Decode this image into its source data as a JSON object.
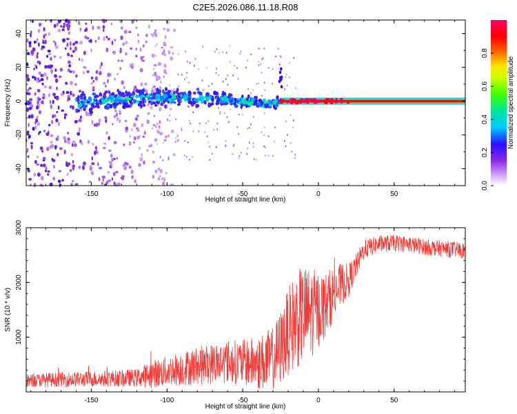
{
  "title": "C2E5.2026.086.11.18.R08",
  "chart_data": [
    {
      "type": "heatmap",
      "xlabel": "Height of straight line (km)",
      "ylabel": "Frequency (Hz)",
      "xlim": [
        -193,
        97
      ],
      "ylim": [
        -50,
        48
      ],
      "xticks": [
        -150,
        -100,
        -50,
        0,
        50
      ],
      "yticks": [
        -40,
        -20,
        0,
        20,
        40
      ],
      "colorbar": {
        "label": "Normalized spectral amplitude",
        "range": [
          0,
          1
        ],
        "ticks": [
          "0.0",
          "0.2",
          "0.4",
          "0.6",
          "0.8"
        ],
        "tick_values": [
          0,
          0.2,
          0.4,
          0.6,
          0.8
        ]
      },
      "features": [
        {
          "name": "noise",
          "x_range": [
            -193,
            -110
          ],
          "y_range": [
            -50,
            48
          ],
          "amplitude": [
            0.05,
            0.25
          ]
        },
        {
          "name": "signal-trace",
          "x_range": [
            -160,
            -25
          ],
          "center_freq": [
            -2,
            3
          ],
          "amplitude": [
            0.2,
            0.45
          ]
        },
        {
          "name": "strong-trace",
          "x_range": [
            -25,
            97
          ],
          "center_freq": 0,
          "amplitude": [
            0.85,
            1.0
          ]
        },
        {
          "name": "spike",
          "x": -26,
          "y_range": [
            8,
            20
          ],
          "amplitude": 0.25
        }
      ]
    },
    {
      "type": "line",
      "xlabel": "Height of straight line (km)",
      "ylabel": "SNR (10 * v/v)",
      "xlim": [
        -193,
        97
      ],
      "ylim": [
        0,
        3000
      ],
      "xticks": [
        -150,
        -100,
        -50,
        0,
        50
      ],
      "yticks": [
        1000,
        2000,
        3000
      ],
      "series": [
        {
          "name": "SNR",
          "color": "#ef3a36",
          "x": [
            -193,
            -180,
            -160,
            -140,
            -120,
            -110,
            -100,
            -90,
            -80,
            -70,
            -60,
            -50,
            -40,
            -30,
            -25,
            -20,
            -15,
            -10,
            -5,
            0,
            5,
            10,
            15,
            20,
            25,
            30,
            40,
            50,
            60,
            70,
            80,
            90,
            97
          ],
          "y": [
            200,
            220,
            230,
            240,
            260,
            320,
            380,
            430,
            480,
            520,
            560,
            540,
            520,
            600,
            800,
            1100,
            1300,
            1400,
            1450,
            1500,
            1600,
            1800,
            1950,
            2050,
            2300,
            2600,
            2700,
            2720,
            2700,
            2650,
            2620,
            2600,
            2580
          ],
          "noise_amplitude": [
            120,
            130,
            140,
            150,
            160,
            260,
            280,
            320,
            350,
            380,
            400,
            420,
            500,
            600,
            700,
            800,
            900,
            900,
            850,
            700,
            600,
            500,
            400,
            300,
            220,
            180,
            160,
            150,
            150,
            150,
            150,
            150,
            150
          ]
        }
      ]
    }
  ]
}
